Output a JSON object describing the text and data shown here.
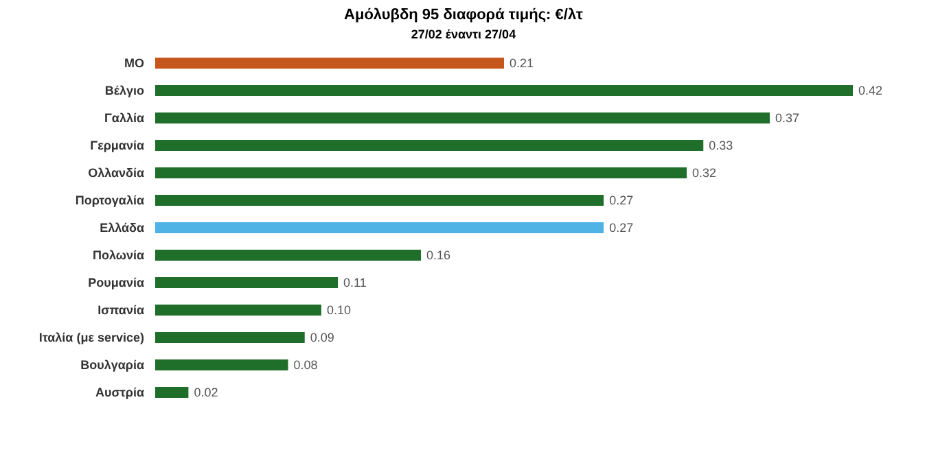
{
  "chart_data": {
    "type": "bar",
    "orientation": "horizontal",
    "title": "Αμόλυβδη 95 διαφορά τιμής: €/λτ",
    "subtitle": "27/02 έναντι 27/04",
    "categories": [
      "ΜΟ",
      "Βέλγιο",
      "Γαλλία",
      "Γερμανία",
      "Ολλανδία",
      "Πορτογαλία",
      "Ελλάδα",
      "Πολωνία",
      "Ρουμανία",
      "Ισπανία",
      "Ιταλία (με service)",
      "Βουλγαρία",
      "Αυστρία"
    ],
    "values": [
      0.21,
      0.42,
      0.37,
      0.33,
      0.32,
      0.27,
      0.27,
      0.16,
      0.11,
      0.1,
      0.09,
      0.08,
      0.02
    ],
    "value_labels": [
      "0.21",
      "0.42",
      "0.37",
      "0.33",
      "0.32",
      "0.27",
      "0.27",
      "0.16",
      "0.11",
      "0.10",
      "0.09",
      "0.08",
      "0.02"
    ],
    "colors": [
      "#c5561c",
      "#1f6f2a",
      "#1f6f2a",
      "#1f6f2a",
      "#1f6f2a",
      "#1f6f2a",
      "#4fb3e6",
      "#1f6f2a",
      "#1f6f2a",
      "#1f6f2a",
      "#1f6f2a",
      "#1f6f2a",
      "#1f6f2a"
    ]
  }
}
